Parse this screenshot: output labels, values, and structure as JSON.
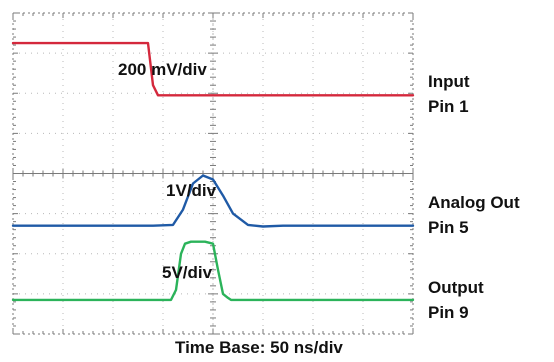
{
  "chart_data": [
    {
      "type": "line",
      "channel_label": "Input",
      "pin_label": "Pin 1",
      "scale_label": "200 mV/div",
      "color": "#d4283c",
      "x_unit": "ns",
      "y_unit": "div",
      "series": [
        {
          "x": [
            0,
            135,
            140,
            145,
            150,
            400
          ],
          "y": [
            7.25,
            7.25,
            6.2,
            5.95,
            5.95,
            5.95
          ]
        }
      ]
    },
    {
      "type": "line",
      "channel_label": "Analog Out",
      "pin_label": "Pin 5",
      "scale_label": "1V/div",
      "color": "#1f5aa6",
      "x_unit": "ns",
      "y_unit": "div",
      "series": [
        {
          "x": [
            0,
            140,
            160,
            170,
            180,
            190,
            200,
            210,
            220,
            235,
            250,
            270,
            300,
            350,
            400
          ],
          "y": [
            2.7,
            2.7,
            2.72,
            3.1,
            3.75,
            3.95,
            3.85,
            3.45,
            3.0,
            2.72,
            2.68,
            2.7,
            2.7,
            2.7,
            2.7
          ]
        }
      ]
    },
    {
      "type": "line",
      "channel_label": "Output",
      "pin_label": "Pin 9",
      "scale_label": "5V/div",
      "color": "#2bb35a",
      "x_unit": "ns",
      "y_unit": "div",
      "series": [
        {
          "x": [
            0,
            158,
            163,
            168,
            172,
            178,
            185,
            192,
            200,
            205,
            210,
            215,
            218,
            400
          ],
          "y": [
            0.85,
            0.85,
            1.1,
            2.0,
            2.25,
            2.3,
            2.3,
            2.3,
            2.25,
            1.6,
            1.0,
            0.9,
            0.85,
            0.85
          ]
        }
      ]
    }
  ],
  "timebase_label": "Time Base: 50 ns/div",
  "colors": {
    "grid_dot": "#b8b8b8",
    "tick": "#7a7a7a",
    "frame": "#555555"
  }
}
